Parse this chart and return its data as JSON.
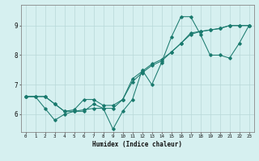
{
  "title": "",
  "xlabel": "Humidex (Indice chaleur)",
  "ylabel": "",
  "bg_color": "#d6f0f0",
  "line_color": "#1a7a6e",
  "grid_color": "#b8d8d8",
  "xlim": [
    -0.5,
    23.5
  ],
  "ylim": [
    5.4,
    9.7
  ],
  "xticks": [
    0,
    1,
    2,
    3,
    4,
    5,
    6,
    7,
    8,
    9,
    10,
    11,
    12,
    13,
    14,
    15,
    16,
    17,
    18,
    19,
    20,
    21,
    22,
    23
  ],
  "yticks": [
    6,
    7,
    8,
    9
  ],
  "line1_x": [
    0,
    1,
    2,
    3,
    4,
    5,
    6,
    7,
    8,
    9,
    10,
    11,
    12,
    13,
    14,
    15,
    16,
    17,
    18,
    19,
    20,
    21,
    22,
    23
  ],
  "line1_y": [
    6.6,
    6.6,
    6.2,
    5.8,
    6.0,
    6.1,
    6.15,
    6.2,
    6.2,
    5.5,
    6.1,
    6.5,
    7.5,
    7.0,
    7.75,
    8.6,
    9.3,
    9.3,
    8.7,
    8.0,
    8.0,
    7.9,
    8.4,
    9.0
  ],
  "line2_x": [
    0,
    1,
    2,
    3,
    4,
    5,
    6,
    7,
    8,
    9,
    10,
    11,
    12,
    13,
    14,
    15,
    16,
    17,
    18,
    19,
    20,
    21,
    22,
    23
  ],
  "line2_y": [
    6.6,
    6.6,
    6.6,
    6.35,
    6.1,
    6.15,
    6.5,
    6.5,
    6.3,
    6.3,
    6.5,
    7.1,
    7.4,
    7.65,
    7.8,
    8.1,
    8.4,
    8.75,
    8.8,
    8.85,
    8.9,
    9.0,
    9.0,
    9.0
  ],
  "line3_x": [
    0,
    2,
    3,
    4,
    5,
    6,
    7,
    8,
    9,
    10,
    11,
    12,
    13,
    14,
    15,
    16,
    17,
    18,
    19,
    20,
    21,
    22,
    23
  ],
  "line3_y": [
    6.6,
    6.6,
    6.35,
    6.1,
    6.1,
    6.1,
    6.35,
    6.2,
    6.2,
    6.5,
    7.2,
    7.45,
    7.7,
    7.85,
    8.1,
    8.4,
    8.7,
    8.8,
    8.85,
    8.9,
    9.0,
    9.0,
    9.0
  ]
}
